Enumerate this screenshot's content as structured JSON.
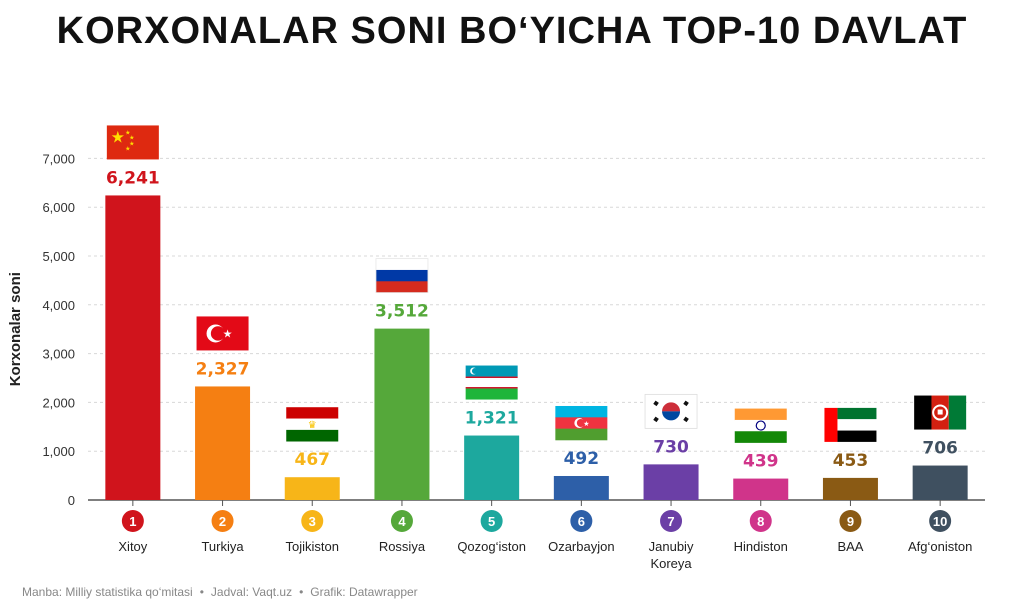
{
  "title": "KORXONALAR SONI BO‘YICHA TOP-10 DAVLAT",
  "footer": {
    "source": "Manba: Milliy statistika qo‘mitasi",
    "table": "Jadval: Vaqt.uz",
    "graphic": "Grafik: Datawrapper"
  },
  "chart_data": {
    "type": "bar",
    "title": "KORXONALAR SONI BO‘YICHA TOP-10 DAVLAT",
    "xlabel": "",
    "ylabel": "Korxonalar soni",
    "ylim": [
      0,
      7000
    ],
    "yticks": [
      0,
      1000,
      2000,
      3000,
      4000,
      5000,
      6000,
      7000
    ],
    "ytick_labels": [
      "0",
      "1,000",
      "2,000",
      "3,000",
      "4,000",
      "5,000",
      "6,000",
      "7,000"
    ],
    "grid": true,
    "categories": [
      "Xitoy",
      "Turkiya",
      "Tojikiston",
      "Rossiya",
      "Qozog‘iston",
      "Ozarbayjon",
      "Janubiy Koreya",
      "Hindiston",
      "BAA",
      "Afg‘oniston"
    ],
    "ranks": [
      "1",
      "2",
      "3",
      "4",
      "5",
      "6",
      "7",
      "8",
      "9",
      "10"
    ],
    "values": [
      6241,
      2327,
      467,
      3512,
      1321,
      492,
      730,
      439,
      453,
      706
    ],
    "value_labels": [
      "6,241",
      "2,327",
      "467",
      "3,512",
      "1,321",
      "492",
      "730",
      "439",
      "453",
      "706"
    ],
    "colors": [
      "#d0141c",
      "#f57f12",
      "#f7b518",
      "#55a83a",
      "#1da89e",
      "#2d5fa8",
      "#6b3fa6",
      "#d0348a",
      "#8a5a14",
      "#3f5060"
    ],
    "flags": [
      "china-flag",
      "turkey-flag",
      "tajikistan-flag",
      "russia-flag",
      "kazakhstan-uzbek-flag",
      "azerbaijan-flag",
      "south-korea-flag",
      "india-flag",
      "uae-flag",
      "afghanistan-flag"
    ]
  }
}
